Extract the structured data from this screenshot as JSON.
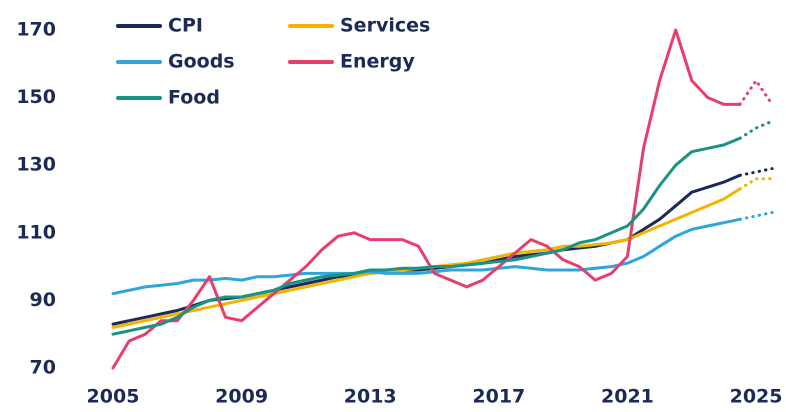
{
  "chart_data": {
    "type": "line",
    "x": [
      2005,
      2005.5,
      2006,
      2006.5,
      2007,
      2007.5,
      2008,
      2008.5,
      2009,
      2009.5,
      2010,
      2010.5,
      2011,
      2011.5,
      2012,
      2012.5,
      2013,
      2013.5,
      2014,
      2014.5,
      2015,
      2015.5,
      2016,
      2016.5,
      2017,
      2017.5,
      2018,
      2018.5,
      2019,
      2019.5,
      2020,
      2020.5,
      2021,
      2021.5,
      2022,
      2022.5,
      2023,
      2023.5,
      2024,
      2024.5,
      2025,
      2025.5
    ],
    "series": [
      {
        "name": "CPI",
        "color": "#1b2a57",
        "values": [
          83,
          84,
          85,
          86,
          87,
          88.5,
          90,
          90.5,
          91,
          92,
          93,
          94,
          95,
          96,
          97,
          97.5,
          98,
          98.5,
          99,
          99,
          99.5,
          100,
          100.5,
          101,
          102,
          103,
          103.5,
          104,
          105,
          105.5,
          106,
          107,
          108,
          111,
          114,
          118,
          122,
          123.5,
          125,
          127,
          null,
          null
        ],
        "forecast": [
          null,
          null,
          null,
          null,
          null,
          null,
          null,
          null,
          null,
          null,
          null,
          null,
          null,
          null,
          null,
          null,
          null,
          null,
          null,
          null,
          null,
          null,
          null,
          null,
          null,
          null,
          null,
          null,
          null,
          null,
          null,
          null,
          null,
          null,
          null,
          null,
          null,
          null,
          null,
          127,
          128,
          129
        ]
      },
      {
        "name": "Services",
        "color": "#f2b400",
        "values": [
          82,
          83,
          84,
          85,
          86,
          87,
          88,
          89,
          90,
          91,
          92,
          93,
          94,
          95,
          96,
          97,
          98,
          98.5,
          99,
          99.5,
          100,
          100.5,
          101,
          102,
          103,
          104,
          104.5,
          105,
          106,
          106,
          106.5,
          107,
          108,
          110,
          112,
          114,
          116,
          118,
          120,
          123,
          null,
          null
        ],
        "forecast": [
          null,
          null,
          null,
          null,
          null,
          null,
          null,
          null,
          null,
          null,
          null,
          null,
          null,
          null,
          null,
          null,
          null,
          null,
          null,
          null,
          null,
          null,
          null,
          null,
          null,
          null,
          null,
          null,
          null,
          null,
          null,
          null,
          null,
          null,
          null,
          null,
          null,
          null,
          null,
          123,
          126,
          126
        ]
      },
      {
        "name": "Goods",
        "color": "#2ea6d9",
        "values": [
          92,
          93,
          94,
          94.5,
          95,
          96,
          96,
          96.5,
          96,
          97,
          97,
          97.5,
          98,
          98,
          98,
          98,
          98.5,
          98,
          98,
          98,
          98.5,
          99,
          99,
          99,
          99.5,
          100,
          99.5,
          99,
          99,
          99,
          99.5,
          100,
          101,
          103,
          106,
          109,
          111,
          112,
          113,
          114,
          null,
          null
        ],
        "forecast": [
          null,
          null,
          null,
          null,
          null,
          null,
          null,
          null,
          null,
          null,
          null,
          null,
          null,
          null,
          null,
          null,
          null,
          null,
          null,
          null,
          null,
          null,
          null,
          null,
          null,
          null,
          null,
          null,
          null,
          null,
          null,
          null,
          null,
          null,
          null,
          null,
          null,
          null,
          null,
          114,
          115,
          116
        ]
      },
      {
        "name": "Energy",
        "color": "#e83e6c",
        "values": [
          70,
          78,
          80,
          84,
          84,
          90,
          97,
          85,
          84,
          88,
          92,
          96,
          100,
          105,
          109,
          110,
          108,
          108,
          108,
          106,
          98,
          96,
          94,
          96,
          100,
          104,
          108,
          106,
          102,
          100,
          96,
          98,
          103,
          135,
          155,
          170,
          155,
          150,
          148,
          148,
          null,
          null
        ],
        "forecast": [
          null,
          null,
          null,
          null,
          null,
          null,
          null,
          null,
          null,
          null,
          null,
          null,
          null,
          null,
          null,
          null,
          null,
          null,
          null,
          null,
          null,
          null,
          null,
          null,
          null,
          null,
          null,
          null,
          null,
          null,
          null,
          null,
          null,
          null,
          null,
          null,
          null,
          null,
          null,
          148,
          155,
          148
        ]
      },
      {
        "name": "Food",
        "color": "#1b9384",
        "values": [
          80,
          81,
          82,
          83,
          85,
          88,
          90,
          91,
          91,
          92,
          93,
          95,
          96,
          97,
          97.5,
          98,
          99,
          99,
          99.5,
          99.5,
          100,
          100,
          100.5,
          101,
          101.5,
          102,
          103,
          104,
          105,
          107,
          108,
          110,
          112,
          117,
          124,
          130,
          134,
          135,
          136,
          138,
          null,
          null
        ],
        "forecast": [
          null,
          null,
          null,
          null,
          null,
          null,
          null,
          null,
          null,
          null,
          null,
          null,
          null,
          null,
          null,
          null,
          null,
          null,
          null,
          null,
          null,
          null,
          null,
          null,
          null,
          null,
          null,
          null,
          null,
          null,
          null,
          null,
          null,
          null,
          null,
          null,
          null,
          null,
          null,
          138,
          141,
          143
        ]
      }
    ],
    "xlim": [
      2005,
      2025.9
    ],
    "xticks": [
      2005,
      2009,
      2013,
      2017,
      2021,
      2025
    ],
    "ylim": [
      70,
      170
    ],
    "yticks": [
      70,
      90,
      110,
      130,
      150,
      170
    ],
    "grid": false,
    "legend": "upper left"
  }
}
